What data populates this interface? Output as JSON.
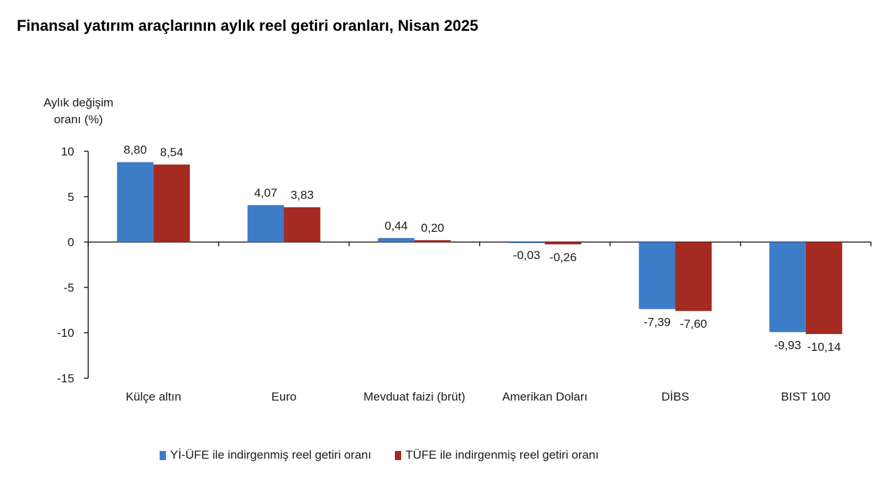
{
  "title": "Finansal yatırım araçlarının aylık reel getiri oranları, Nisan 2025",
  "chart_data": {
    "type": "bar",
    "ylabel_line1": "Aylık değişim",
    "ylabel_line2": "oranı (%)",
    "ylim": [
      -15,
      10
    ],
    "yticks": [
      10,
      5,
      0,
      -5,
      -10,
      -15
    ],
    "categories": [
      "Külçe altın",
      "Euro",
      "Mevduat faizi (brüt)",
      "Amerikan Doları",
      "DİBS",
      "BIST 100"
    ],
    "series": [
      {
        "name": "Yİ-ÜFE ile indirgenmiş reel getiri oranı",
        "color": "#3d7cc7",
        "values": [
          8.8,
          4.07,
          0.44,
          -0.03,
          -7.39,
          -9.93
        ],
        "labels": [
          "8,80",
          "4,07",
          "0,44",
          "-0,03",
          "-7,39",
          "-9,93"
        ]
      },
      {
        "name": "TÜFE ile indirgenmiş reel getiri oranı",
        "color": "#a52a22",
        "values": [
          8.54,
          3.83,
          0.2,
          -0.26,
          -7.6,
          -10.14
        ],
        "labels": [
          "8,54",
          "3,83",
          "0,20",
          "-0,26",
          "-7,60",
          "-10,14"
        ]
      }
    ],
    "grid": false,
    "legend_position": "bottom"
  }
}
